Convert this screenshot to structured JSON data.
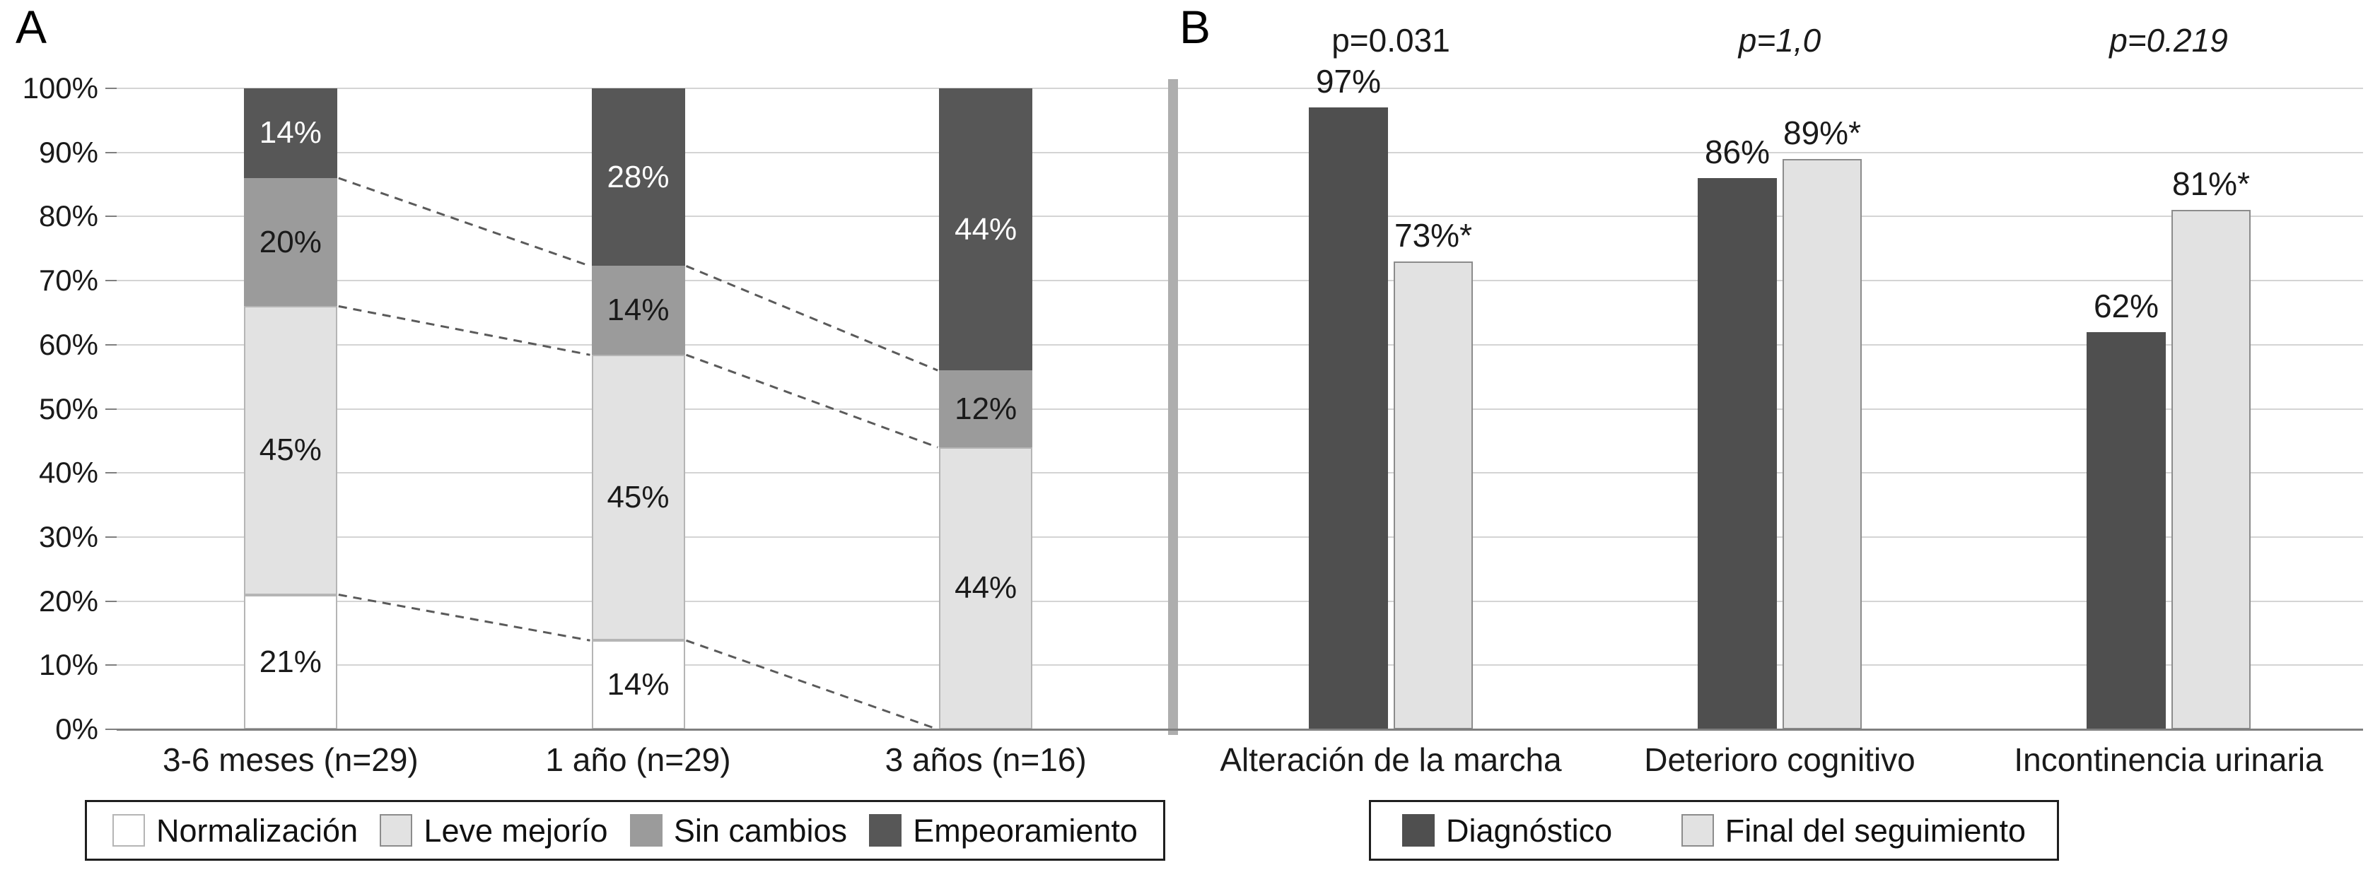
{
  "panel_a": {
    "label": "A"
  },
  "panel_b": {
    "label": "B"
  },
  "style": {
    "gridline_color": "#d4d4d4",
    "axis_color": "#7f7f7f",
    "divider_color": "#aeaeae",
    "text_color": "#1a1a1a",
    "connector_color": "#5a5a5a"
  },
  "chart_data": [
    {
      "panel": "A",
      "type": "bar",
      "subtype": "stacked-100",
      "title": "",
      "categories": [
        "3-6 meses (n=29)",
        "1 año (n=29)",
        "3 años (n=16)"
      ],
      "series": [
        {
          "name": "Normalización",
          "color": "#ffffff",
          "values": [
            21,
            14,
            0
          ]
        },
        {
          "name": "Leve mejorío",
          "color": "#e2e2e2",
          "values": [
            45,
            45,
            44
          ]
        },
        {
          "name": "Sin cambios",
          "color": "#9b9b9b",
          "values": [
            20,
            14,
            12
          ]
        },
        {
          "name": "Empeoramiento",
          "color": "#575757",
          "values": [
            14,
            28,
            44
          ]
        }
      ],
      "y_ticks": [
        "0%",
        "10%",
        "20%",
        "30%",
        "40%",
        "50%",
        "60%",
        "70%",
        "80%",
        "90%",
        "100%"
      ],
      "ylim": [
        0,
        100
      ],
      "grid": true,
      "legend_position": "bottom",
      "annotations": "dashed lines connect segment boundaries of adjacent bars"
    },
    {
      "panel": "B",
      "type": "bar",
      "subtype": "grouped",
      "title": "",
      "categories": [
        "Alteración de la marcha",
        "Deterioro cognitivo",
        "Incontinencia urinaria"
      ],
      "p_values": [
        {
          "text": "p=0.031",
          "italic": false
        },
        {
          "text": "p=1,0",
          "italic": true
        },
        {
          "text": "p=0.219",
          "italic": true
        }
      ],
      "series": [
        {
          "name": "Diagnóstico",
          "color": "#4f4f4f",
          "values": [
            97,
            86,
            62
          ],
          "value_labels": [
            "97%",
            "86%",
            "62%"
          ]
        },
        {
          "name": "Final del seguimiento",
          "color": "#e2e2e2",
          "values": [
            73,
            89,
            81
          ],
          "value_labels": [
            "73%*",
            "89%*",
            "81%*"
          ]
        }
      ],
      "ylim": [
        0,
        100
      ],
      "grid": true,
      "legend_position": "bottom"
    }
  ]
}
